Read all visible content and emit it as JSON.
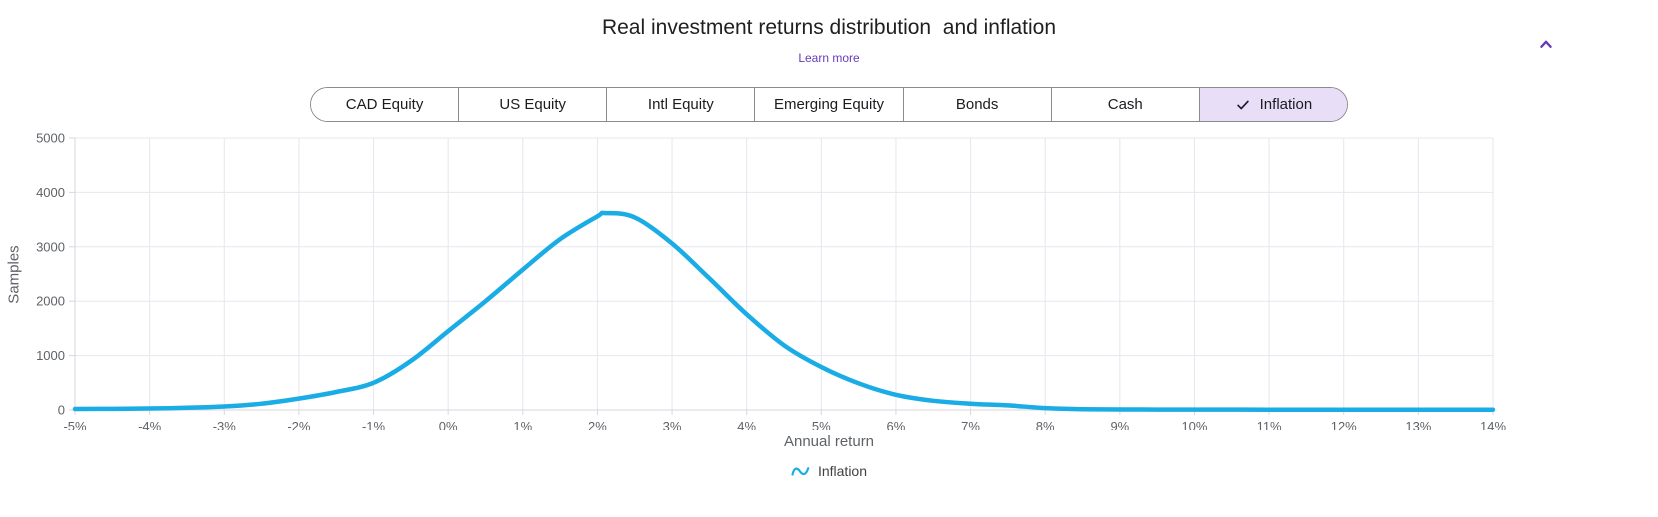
{
  "header": {
    "title": "Real investment returns distribution  and inflation",
    "learn_more_label": "Learn more",
    "collapse_icon": "chevron-up-icon",
    "accent_color": "#673ab7"
  },
  "asset_toggle": {
    "segments": [
      {
        "label": "CAD Equity",
        "selected": false
      },
      {
        "label": "US Equity",
        "selected": false
      },
      {
        "label": "Intl Equity",
        "selected": false
      },
      {
        "label": "Emerging Equity",
        "selected": false
      },
      {
        "label": "Bonds",
        "selected": false
      },
      {
        "label": "Cash",
        "selected": false
      },
      {
        "label": "Inflation",
        "selected": true
      }
    ],
    "selected_bg": "#e8def8",
    "border_color": "#8b8b8b"
  },
  "chart_data": {
    "type": "line",
    "title": "Real investment returns distribution  and inflation",
    "xlabel": "Annual return",
    "ylabel": "Samples",
    "xlim": [
      -5,
      14
    ],
    "ylim": [
      0,
      5000
    ],
    "x_tick_values": [
      -5,
      -4,
      -3,
      -2,
      -1,
      0,
      1,
      2,
      3,
      4,
      5,
      6,
      7,
      8,
      9,
      10,
      11,
      12,
      13,
      14
    ],
    "x_tick_labels": [
      "-5%",
      "-4%",
      "-3%",
      "-2%",
      "-1%",
      "0%",
      "1%",
      "2%",
      "3%",
      "4%",
      "5%",
      "6%",
      "7%",
      "8%",
      "9%",
      "10%",
      "11%",
      "12%",
      "13%",
      "14%"
    ],
    "y_tick_values": [
      0,
      1000,
      2000,
      3000,
      4000,
      5000
    ],
    "y_tick_labels": [
      "0",
      "1000",
      "2000",
      "3000",
      "4000",
      "5000"
    ],
    "grid": true,
    "grid_color": "#e8e5ee",
    "axis_color": "#d8d5df",
    "legend_position": "bottom",
    "series": [
      {
        "name": "Inflation",
        "color": "#1aace4",
        "points": [
          [
            -5,
            18
          ],
          [
            -4.5,
            21
          ],
          [
            -4,
            27
          ],
          [
            -3.5,
            40
          ],
          [
            -3,
            65
          ],
          [
            -2.5,
            115
          ],
          [
            -2,
            210
          ],
          [
            -1.5,
            330
          ],
          [
            -1,
            500
          ],
          [
            -0.5,
            900
          ],
          [
            0,
            1450
          ],
          [
            0.5,
            2000
          ],
          [
            1,
            2580
          ],
          [
            1.5,
            3140
          ],
          [
            2,
            3560
          ],
          [
            2.1,
            3620
          ],
          [
            2.5,
            3540
          ],
          [
            3,
            3060
          ],
          [
            3.5,
            2420
          ],
          [
            4,
            1760
          ],
          [
            4.5,
            1190
          ],
          [
            5,
            790
          ],
          [
            5.5,
            490
          ],
          [
            6,
            280
          ],
          [
            6.5,
            170
          ],
          [
            7,
            115
          ],
          [
            7.5,
            85
          ],
          [
            8,
            35
          ],
          [
            8.5,
            15
          ],
          [
            9,
            10
          ],
          [
            9.5,
            8
          ],
          [
            10,
            7
          ],
          [
            11,
            6
          ],
          [
            12,
            6
          ],
          [
            13,
            6
          ],
          [
            14,
            6
          ]
        ]
      }
    ]
  },
  "footer_legend": {
    "items": [
      {
        "label": "Inflation",
        "icon": "wave-icon",
        "color": "#1aace4"
      }
    ]
  }
}
